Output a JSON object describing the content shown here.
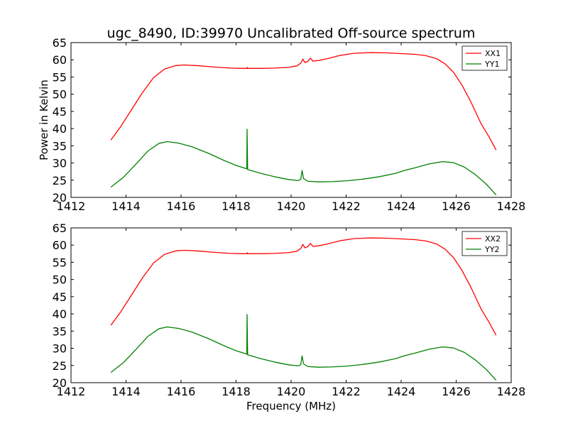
{
  "chart_data": [
    {
      "type": "line",
      "title": "ugc_8490, ID:39970 Uncalibrated Off-source spectrum",
      "xlabel": "",
      "ylabel": "Power in Kelvin",
      "xlim": [
        1412,
        1428
      ],
      "ylim": [
        20,
        65
      ],
      "xticks": [
        1412,
        1414,
        1416,
        1418,
        1420,
        1422,
        1424,
        1426,
        1428
      ],
      "yticks": [
        20,
        25,
        30,
        35,
        40,
        45,
        50,
        55,
        60,
        65
      ],
      "grid": false,
      "legend": "top-right",
      "series": [
        {
          "name": "XX1",
          "color": "#ff0000",
          "points": [
            [
              1413.45,
              36.7
            ],
            [
              1413.8,
              40.5
            ],
            [
              1414.2,
              45.5
            ],
            [
              1414.6,
              50.5
            ],
            [
              1415.0,
              54.8
            ],
            [
              1415.4,
              57.3
            ],
            [
              1415.8,
              58.3
            ],
            [
              1416.1,
              58.5
            ],
            [
              1416.6,
              58.3
            ],
            [
              1417.2,
              57.9
            ],
            [
              1417.8,
              57.6
            ],
            [
              1418.2,
              57.5
            ],
            [
              1418.4,
              57.5
            ],
            [
              1418.41,
              57.8
            ],
            [
              1418.42,
              57.5
            ],
            [
              1418.9,
              57.5
            ],
            [
              1419.4,
              57.6
            ],
            [
              1419.9,
              57.8
            ],
            [
              1420.2,
              58.2
            ],
            [
              1420.35,
              59.0
            ],
            [
              1420.43,
              60.2
            ],
            [
              1420.5,
              59.2
            ],
            [
              1420.62,
              59.6
            ],
            [
              1420.7,
              60.5
            ],
            [
              1420.8,
              59.6
            ],
            [
              1421.0,
              59.8
            ],
            [
              1421.3,
              60.3
            ],
            [
              1421.8,
              61.3
            ],
            [
              1422.3,
              61.9
            ],
            [
              1422.9,
              62.1
            ],
            [
              1423.5,
              62.0
            ],
            [
              1424.0,
              61.8
            ],
            [
              1424.5,
              61.6
            ],
            [
              1424.9,
              61.2
            ],
            [
              1425.3,
              60.3
            ],
            [
              1425.6,
              58.8
            ],
            [
              1425.9,
              56.4
            ],
            [
              1426.2,
              52.8
            ],
            [
              1426.5,
              48.3
            ],
            [
              1426.65,
              45.8
            ],
            [
              1426.9,
              41.5
            ],
            [
              1427.2,
              37.5
            ],
            [
              1427.45,
              33.8
            ]
          ]
        },
        {
          "name": "YY1",
          "color": "#008000",
          "points": [
            [
              1413.45,
              23.0
            ],
            [
              1413.9,
              25.8
            ],
            [
              1414.4,
              30.0
            ],
            [
              1414.8,
              33.5
            ],
            [
              1415.2,
              35.7
            ],
            [
              1415.5,
              36.2
            ],
            [
              1415.9,
              35.8
            ],
            [
              1416.4,
              34.7
            ],
            [
              1417.0,
              32.8
            ],
            [
              1417.6,
              30.6
            ],
            [
              1418.0,
              29.3
            ],
            [
              1418.39,
              28.3
            ],
            [
              1418.4,
              39.8
            ],
            [
              1418.42,
              28.1
            ],
            [
              1418.9,
              27.0
            ],
            [
              1419.4,
              26.0
            ],
            [
              1419.9,
              25.2
            ],
            [
              1420.25,
              24.9
            ],
            [
              1420.35,
              25.2
            ],
            [
              1420.4,
              27.8
            ],
            [
              1420.45,
              25.5
            ],
            [
              1420.6,
              24.7
            ],
            [
              1421.0,
              24.5
            ],
            [
              1421.5,
              24.6
            ],
            [
              1422.0,
              24.8
            ],
            [
              1422.6,
              25.3
            ],
            [
              1423.2,
              26.0
            ],
            [
              1423.8,
              27.0
            ],
            [
              1424.1,
              27.8
            ],
            [
              1424.5,
              28.6
            ],
            [
              1425.0,
              29.7
            ],
            [
              1425.5,
              30.4
            ],
            [
              1425.9,
              30.1
            ],
            [
              1426.3,
              28.8
            ],
            [
              1426.7,
              26.6
            ],
            [
              1427.1,
              23.8
            ],
            [
              1427.45,
              20.7
            ]
          ]
        }
      ]
    },
    {
      "type": "line",
      "title": "",
      "xlabel": "Frequency (MHz)",
      "ylabel": "",
      "xlim": [
        1412,
        1428
      ],
      "ylim": [
        20,
        65
      ],
      "xticks": [
        1412,
        1414,
        1416,
        1418,
        1420,
        1422,
        1424,
        1426,
        1428
      ],
      "yticks": [
        20,
        25,
        30,
        35,
        40,
        45,
        50,
        55,
        60,
        65
      ],
      "grid": false,
      "legend": "top-right",
      "series": [
        {
          "name": "XX2",
          "color": "#ff0000",
          "points": [
            [
              1413.45,
              36.7
            ],
            [
              1413.8,
              40.5
            ],
            [
              1414.2,
              45.5
            ],
            [
              1414.6,
              50.5
            ],
            [
              1415.0,
              54.8
            ],
            [
              1415.4,
              57.3
            ],
            [
              1415.8,
              58.3
            ],
            [
              1416.1,
              58.5
            ],
            [
              1416.6,
              58.3
            ],
            [
              1417.2,
              57.9
            ],
            [
              1417.8,
              57.6
            ],
            [
              1418.2,
              57.5
            ],
            [
              1418.4,
              57.5
            ],
            [
              1418.41,
              57.8
            ],
            [
              1418.42,
              57.5
            ],
            [
              1418.9,
              57.5
            ],
            [
              1419.4,
              57.6
            ],
            [
              1419.9,
              57.8
            ],
            [
              1420.2,
              58.2
            ],
            [
              1420.35,
              59.0
            ],
            [
              1420.43,
              60.2
            ],
            [
              1420.5,
              59.2
            ],
            [
              1420.62,
              59.6
            ],
            [
              1420.7,
              60.5
            ],
            [
              1420.8,
              59.6
            ],
            [
              1421.0,
              59.8
            ],
            [
              1421.3,
              60.3
            ],
            [
              1421.8,
              61.3
            ],
            [
              1422.3,
              61.9
            ],
            [
              1422.9,
              62.1
            ],
            [
              1423.5,
              62.0
            ],
            [
              1424.0,
              61.8
            ],
            [
              1424.5,
              61.6
            ],
            [
              1424.9,
              61.2
            ],
            [
              1425.3,
              60.3
            ],
            [
              1425.6,
              58.8
            ],
            [
              1425.9,
              56.4
            ],
            [
              1426.2,
              52.8
            ],
            [
              1426.5,
              48.3
            ],
            [
              1426.65,
              45.8
            ],
            [
              1426.9,
              41.5
            ],
            [
              1427.2,
              37.5
            ],
            [
              1427.45,
              33.8
            ]
          ]
        },
        {
          "name": "YY2",
          "color": "#008000",
          "points": [
            [
              1413.45,
              23.0
            ],
            [
              1413.9,
              25.8
            ],
            [
              1414.4,
              30.0
            ],
            [
              1414.8,
              33.5
            ],
            [
              1415.2,
              35.7
            ],
            [
              1415.5,
              36.2
            ],
            [
              1415.9,
              35.8
            ],
            [
              1416.4,
              34.7
            ],
            [
              1417.0,
              32.8
            ],
            [
              1417.6,
              30.6
            ],
            [
              1418.0,
              29.3
            ],
            [
              1418.39,
              28.3
            ],
            [
              1418.4,
              39.8
            ],
            [
              1418.42,
              28.1
            ],
            [
              1418.9,
              27.0
            ],
            [
              1419.4,
              26.0
            ],
            [
              1419.9,
              25.2
            ],
            [
              1420.25,
              24.9
            ],
            [
              1420.35,
              25.2
            ],
            [
              1420.4,
              27.8
            ],
            [
              1420.45,
              25.5
            ],
            [
              1420.6,
              24.7
            ],
            [
              1421.0,
              24.5
            ],
            [
              1421.5,
              24.6
            ],
            [
              1422.0,
              24.8
            ],
            [
              1422.6,
              25.3
            ],
            [
              1423.2,
              26.0
            ],
            [
              1423.8,
              27.0
            ],
            [
              1424.1,
              27.8
            ],
            [
              1424.5,
              28.6
            ],
            [
              1425.0,
              29.7
            ],
            [
              1425.5,
              30.4
            ],
            [
              1425.9,
              30.1
            ],
            [
              1426.3,
              28.8
            ],
            [
              1426.7,
              26.6
            ],
            [
              1427.1,
              23.8
            ],
            [
              1427.45,
              20.7
            ]
          ]
        }
      ]
    }
  ]
}
